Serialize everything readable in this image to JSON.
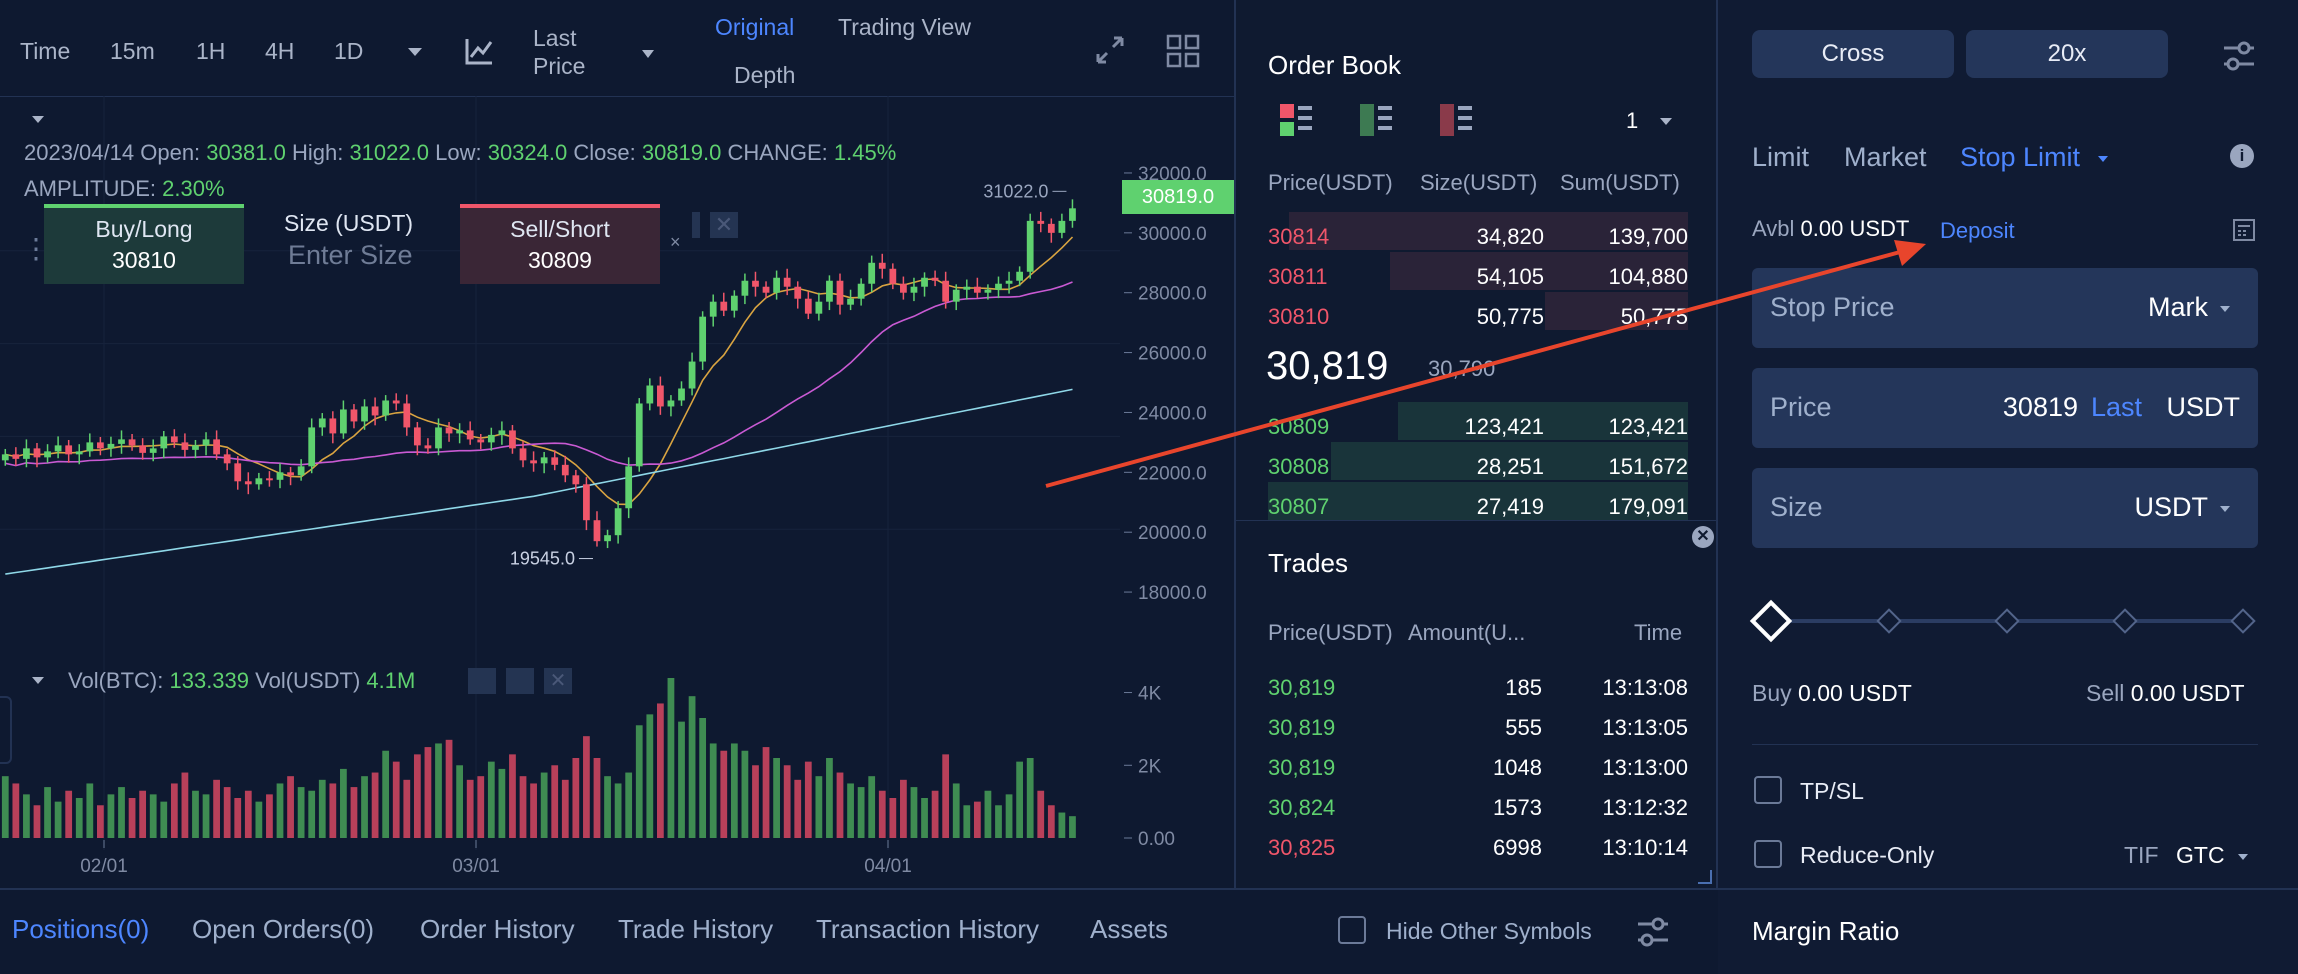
{
  "toolbar": {
    "intervals": [
      "Time",
      "15m",
      "1H",
      "4H",
      "1D"
    ],
    "active_interval": "1D",
    "price_type_line1": "Last",
    "price_type_line2": "Price",
    "view_original": "Original",
    "view_trading": "Trading View",
    "view_depth": "Depth"
  },
  "ohlc": {
    "date": "2023/04/14",
    "open_label": "Open:",
    "open": "30381.0",
    "high_label": "High:",
    "high": "31022.0",
    "low_label": "Low:",
    "low": "30324.0",
    "close_label": "Close:",
    "close": "30819.0",
    "change_label": "CHANGE:",
    "change": "1.45%",
    "amplitude_label": "AMPLITUDE:",
    "amplitude": "2.30%"
  },
  "quick_trade": {
    "buy_label": "Buy/Long",
    "buy_price": "30810",
    "size_label": "Size (USDT)",
    "size_placeholder": "Enter Size",
    "sell_label": "Sell/Short",
    "sell_price": "30809"
  },
  "chart_data": {
    "type": "candlestick",
    "xlabels": [
      "02/01",
      "03/01",
      "04/01"
    ],
    "ytick_labels": [
      "32000.0",
      "30000.0",
      "28000.0",
      "26000.0",
      "24000.0",
      "22000.0",
      "20000.0",
      "18000.0"
    ],
    "ylim": [
      17000,
      32500
    ],
    "last_price_tag": "30819.0",
    "high_annotation": "31022.0",
    "low_annotation": "19545.0",
    "closes": [
      22600,
      22450,
      22800,
      22500,
      22700,
      22900,
      22600,
      22700,
      23000,
      22800,
      22950,
      23100,
      22900,
      22650,
      22800,
      23200,
      23000,
      22750,
      22900,
      23100,
      22600,
      22300,
      21700,
      21600,
      21800,
      21750,
      22000,
      21900,
      22200,
      23500,
      23800,
      23300,
      24100,
      23700,
      24200,
      23900,
      24400,
      24300,
      23500,
      22900,
      22800,
      23500,
      23300,
      23400,
      23100,
      23000,
      23250,
      23400,
      22800,
      22400,
      22300,
      22500,
      22250,
      21900,
      21600,
      20400,
      19700,
      19900,
      20800,
      22200,
      24300,
      24900,
      24200,
      24400,
      24800,
      25700,
      27200,
      27700,
      27400,
      27900,
      28400,
      28200,
      28000,
      28500,
      28200,
      27800,
      27300,
      27700,
      28400,
      27600,
      27800,
      28300,
      29000,
      28800,
      28300,
      28000,
      28200,
      28500,
      28400,
      27700,
      28100,
      28200,
      28000,
      28100,
      28300,
      28400,
      28700,
      30400,
      30300,
      30000,
      30400,
      30819
    ]
  },
  "volume": {
    "label_btc": "Vol(BTC):",
    "value_btc": "133.339",
    "label_usdt": "Vol(USDT)",
    "value_usdt": "4.1M",
    "ytick_labels": [
      "4K",
      "2K",
      "0.00"
    ],
    "bars": [
      1700,
      1500,
      1200,
      900,
      1400,
      1000,
      1300,
      1100,
      1500,
      900,
      1200,
      1400,
      1100,
      1300,
      1200,
      1000,
      1500,
      1800,
      1300,
      1200,
      1600,
      1400,
      1100,
      1300,
      1000,
      1200,
      1500,
      1700,
      1400,
      1300,
      1600,
      1500,
      1900,
      1400,
      1700,
      1800,
      2400,
      2100,
      1600,
      2300,
      2500,
      2600,
      2700,
      2000,
      1600,
      1700,
      2100,
      1900,
      2300,
      1700,
      1500,
      1800,
      2000,
      1600,
      2200,
      2800,
      2200,
      1700,
      1500,
      1800,
      3100,
      3400,
      3700,
      4400,
      3200,
      3900,
      3300,
      2600,
      2400,
      2600,
      2400,
      2000,
      2500,
      2200,
      2000,
      1600,
      2100,
      1700,
      2200,
      1800,
      1500,
      1400,
      1700,
      1300,
      1100,
      1600,
      1400,
      1100,
      1300,
      2300,
      1500,
      900,
      1000,
      1300,
      900,
      1200,
      2100,
      2200,
      1300,
      900,
      700,
      600
    ]
  },
  "order_book": {
    "title": "Order Book",
    "precision": "1",
    "headers": [
      "Price(USDT)",
      "Size(USDT)",
      "Sum(USDT)"
    ],
    "asks": [
      {
        "price": "30814",
        "size": "34,820",
        "sum": "139,700",
        "depth": 0.95
      },
      {
        "price": "30811",
        "size": "54,105",
        "sum": "104,880",
        "depth": 0.71
      },
      {
        "price": "30810",
        "size": "50,775",
        "sum": "50,775",
        "depth": 0.34
      }
    ],
    "last_price": "30,819",
    "mark_price": "30,790",
    "bids": [
      {
        "price": "30809",
        "size": "123,421",
        "sum": "123,421",
        "depth": 0.69
      },
      {
        "price": "30808",
        "size": "28,251",
        "sum": "151,672",
        "depth": 0.85
      },
      {
        "price": "30807",
        "size": "27,419",
        "sum": "179,091",
        "depth": 1.0
      }
    ]
  },
  "trades": {
    "title": "Trades",
    "headers": [
      "Price(USDT)",
      "Amount(U...",
      "Time"
    ],
    "rows": [
      {
        "price": "30,819",
        "amount": "185",
        "time": "13:13:08",
        "side": "buy"
      },
      {
        "price": "30,819",
        "amount": "555",
        "time": "13:13:05",
        "side": "buy"
      },
      {
        "price": "30,819",
        "amount": "1048",
        "time": "13:13:00",
        "side": "buy"
      },
      {
        "price": "30,824",
        "amount": "1573",
        "time": "13:12:32",
        "side": "buy"
      },
      {
        "price": "30,825",
        "amount": "6998",
        "time": "13:10:14",
        "side": "sell"
      }
    ]
  },
  "order_form": {
    "margin_mode": "Cross",
    "leverage": "20x",
    "tabs": [
      "Limit",
      "Market",
      "Stop Limit"
    ],
    "active_tab": "Stop Limit",
    "avbl_label": "Avbl",
    "avbl_value": "0.00 USDT",
    "deposit": "Deposit",
    "stop_price_label": "Stop Price",
    "stop_price_type": "Mark",
    "price_label": "Price",
    "price_value": "30819",
    "price_last": "Last",
    "price_unit": "USDT",
    "size_label": "Size",
    "size_unit": "USDT",
    "slider_level": 0,
    "buy_label": "Buy",
    "buy_value": "0.00 USDT",
    "sell_label": "Sell",
    "sell_value": "0.00 USDT",
    "tpsl": "TP/SL",
    "reduce_only": "Reduce-Only",
    "tif_label": "TIF",
    "tif_value": "GTC",
    "margin_ratio": "Margin Ratio"
  },
  "bottom_tabs": {
    "items": [
      "Positions(0)",
      "Open Orders(0)",
      "Order History",
      "Trade History",
      "Transaction History",
      "Assets"
    ],
    "active": "Positions(0)",
    "hide_other": "Hide Other Symbols"
  },
  "colors": {
    "up": "#5fd16f",
    "down": "#f0566a",
    "accent": "#3f7cff",
    "ma_short": "#d9a441",
    "ma_mid": "#c95ad3",
    "ma_long": "#8fd8e8",
    "annotation_arrow": "#e8452c"
  }
}
